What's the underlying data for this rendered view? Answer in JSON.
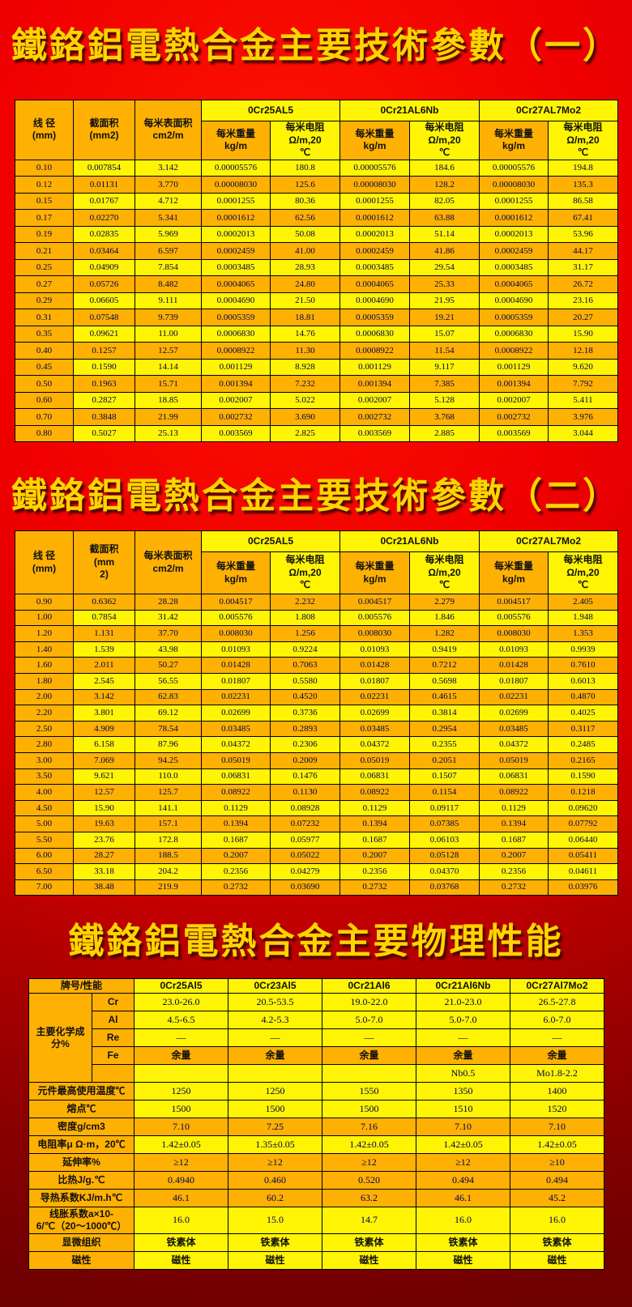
{
  "titles": {
    "section1": "鐵鉻鋁電熱合金主要技術參數（一）",
    "section2": "鐵鉻鋁電熱合金主要技術參數（二）",
    "section3": "鐵鉻鋁電熱合金主要物理性能"
  },
  "colors": {
    "background_red": "#ee0000",
    "background_dark_red": "#8f0000",
    "title_gold": "#ffd400",
    "cell_orange": "#ffb103",
    "cell_yellow": "#fff404",
    "value_ink": "#00004e"
  },
  "table1": {
    "header": {
      "diameter": "线 径\n(mm)",
      "area": "截面积\n(mm2)",
      "surface": "每米表面积\ncm2/m",
      "alloys": [
        "0Cr25AL5",
        "0Cr21AL6Nb",
        "0Cr27AL7Mo2"
      ],
      "weight": "每米重量\nkg/m",
      "resistance": "每米电阻\nΩ/m,20\n℃"
    },
    "rows": [
      [
        "0.10",
        "0.007854",
        "3.142",
        "0.00005576",
        "180.8",
        "0.00005576",
        "184.6",
        "0.00005576",
        "194.8"
      ],
      [
        "0.12",
        "0.01131",
        "3.770",
        "0.00008030",
        "125.6",
        "0.00008030",
        "128.2",
        "0.00008030",
        "135.3"
      ],
      [
        "0.15",
        "0.01767",
        "4.712",
        "0.0001255",
        "80.36",
        "0.0001255",
        "82.05",
        "0.0001255",
        "86.58"
      ],
      [
        "0.17",
        "0.02270",
        "5.341",
        "0.0001612",
        "62.56",
        "0.0001612",
        "63.88",
        "0.0001612",
        "67.41"
      ],
      [
        "0.19",
        "0.02835",
        "5.969",
        "0.0002013",
        "50.08",
        "0.0002013",
        "51.14",
        "0.0002013",
        "53.96"
      ],
      [
        "0.21",
        "0.03464",
        "6.597",
        "0.0002459",
        "41.00",
        "0.0002459",
        "41.86",
        "0.0002459",
        "44.17"
      ],
      [
        "0.25",
        "0.04909",
        "7.854",
        "0.0003485",
        "28.93",
        "0.0003485",
        "29.54",
        "0.0003485",
        "31.17"
      ],
      [
        "0.27",
        "0.05726",
        "8.482",
        "0.0004065",
        "24.80",
        "0.0004065",
        "25.33",
        "0.0004065",
        "26.72"
      ],
      [
        "0.29",
        "0.06605",
        "9.111",
        "0.0004690",
        "21.50",
        "0.0004690",
        "21.95",
        "0.0004690",
        "23.16"
      ],
      [
        "0.31",
        "0.07548",
        "9.739",
        "0.0005359",
        "18.81",
        "0.0005359",
        "19.21",
        "0.0005359",
        "20.27"
      ],
      [
        "0.35",
        "0.09621",
        "11.00",
        "0.0006830",
        "14.76",
        "0.0006830",
        "15.07",
        "0.0006830",
        "15.90"
      ],
      [
        "0.40",
        "0.1257",
        "12.57",
        "0.0008922",
        "11.30",
        "0.0008922",
        "11.54",
        "0.0008922",
        "12.18"
      ],
      [
        "0.45",
        "0.1590",
        "14.14",
        "0.001129",
        "8.928",
        "0.001129",
        "9.117",
        "0.001129",
        "9.620"
      ],
      [
        "0.50",
        "0.1963",
        "15.71",
        "0.001394",
        "7.232",
        "0.001394",
        "7.385",
        "0.001394",
        "7.792"
      ],
      [
        "0.60",
        "0.2827",
        "18.85",
        "0.002007",
        "5.022",
        "0.002007",
        "5.128",
        "0.002007",
        "5.411"
      ],
      [
        "0.70",
        "0.3848",
        "21.99",
        "0.002732",
        "3.690",
        "0.002732",
        "3.768",
        "0.002732",
        "3.976"
      ],
      [
        "0.80",
        "0.5027",
        "25.13",
        "0.003569",
        "2.825",
        "0.003569",
        "2.885",
        "0.003569",
        "3.044"
      ]
    ]
  },
  "table2": {
    "header": {
      "diameter": "线 径\n(mm)",
      "area": "截面积\n(mm\n2)",
      "surface": "每米表面积\ncm2/m",
      "alloys": [
        "0Cr25AL5",
        "0Cr21AL6Nb",
        "0Cr27AL7Mo2"
      ],
      "weight": "每米重量\nkg/m",
      "resistance": "每米电阻\nΩ/m,20\n℃"
    },
    "rows": [
      [
        "0.90",
        "0.6362",
        "28.28",
        "0.004517",
        "2.232",
        "0.004517",
        "2.279",
        "0.004517",
        "2.405"
      ],
      [
        "1.00",
        "0.7854",
        "31.42",
        "0.005576",
        "1.808",
        "0.005576",
        "1.846",
        "0.005576",
        "1.948"
      ],
      [
        "1.20",
        "1.131",
        "37.70",
        "0.008030",
        "1.256",
        "0.008030",
        "1.282",
        "0.008030",
        "1.353"
      ],
      [
        "1.40",
        "1.539",
        "43.98",
        "0.01093",
        "0.9224",
        "0.01093",
        "0.9419",
        "0.01093",
        "0.9939"
      ],
      [
        "1.60",
        "2.011",
        "50.27",
        "0.01428",
        "0.7063",
        "0.01428",
        "0.7212",
        "0.01428",
        "0.7610"
      ],
      [
        "1.80",
        "2.545",
        "56.55",
        "0.01807",
        "0.5580",
        "0.01807",
        "0.5698",
        "0.01807",
        "0.6013"
      ],
      [
        "2.00",
        "3.142",
        "62.83",
        "0.02231",
        "0.4520",
        "0.02231",
        "0.4615",
        "0.02231",
        "0.4870"
      ],
      [
        "2.20",
        "3.801",
        "69.12",
        "0.02699",
        "0.3736",
        "0.02699",
        "0.3814",
        "0.02699",
        "0.4025"
      ],
      [
        "2.50",
        "4.909",
        "78.54",
        "0.03485",
        "0.2893",
        "0.03485",
        "0.2954",
        "0.03485",
        "0.3117"
      ],
      [
        "2.80",
        "6.158",
        "87.96",
        "0.04372",
        "0.2306",
        "0.04372",
        "0.2355",
        "0.04372",
        "0.2485"
      ],
      [
        "3.00",
        "7.069",
        "94.25",
        "0.05019",
        "0.2009",
        "0.05019",
        "0.2051",
        "0.05019",
        "0.2165"
      ],
      [
        "3.50",
        "9.621",
        "110.0",
        "0.06831",
        "0.1476",
        "0.06831",
        "0.1507",
        "0.06831",
        "0.1590"
      ],
      [
        "4.00",
        "12.57",
        "125.7",
        "0.08922",
        "0.1130",
        "0.08922",
        "0.1154",
        "0.08922",
        "0.1218"
      ],
      [
        "4.50",
        "15.90",
        "141.1",
        "0.1129",
        "0.08928",
        "0.1129",
        "0.09117",
        "0.1129",
        "0.09620"
      ],
      [
        "5.00",
        "19.63",
        "157.1",
        "0.1394",
        "0.07232",
        "0.1394",
        "0.07385",
        "0.1394",
        "0.07792"
      ],
      [
        "5.50",
        "23.76",
        "172.8",
        "0.1687",
        "0.05977",
        "0.1687",
        "0.06103",
        "0.1687",
        "0.06440"
      ],
      [
        "6.00",
        "28.27",
        "188.5",
        "0.2007",
        "0.05022",
        "0.2007",
        "0.05128",
        "0.2007",
        "0.05411"
      ],
      [
        "6.50",
        "33.18",
        "204.2",
        "0.2356",
        "0.04279",
        "0.2356",
        "0.04370",
        "0.2356",
        "0.04611"
      ],
      [
        "7.00",
        "38.48",
        "219.9",
        "0.2732",
        "0.03690",
        "0.2732",
        "0.03768",
        "0.2732",
        "0.03976"
      ]
    ]
  },
  "physical": {
    "header": [
      "牌号/性能",
      "0Cr25Al5",
      "0Cr23Al5",
      "0Cr21Al6",
      "0Cr21Al6Nb",
      "0Cr27Al7Mo2"
    ],
    "chem_label": "主要化学成分%",
    "chem_rows": [
      {
        "label": "Cr",
        "values": [
          "23.0-26.0",
          "20.5-53.5",
          "19.0-22.0",
          "21.0-23.0",
          "26.5-27.8"
        ]
      },
      {
        "label": "Al",
        "values": [
          "4.5-6.5",
          "4.2-5.3",
          "5.0-7.0",
          "5.0-7.0",
          "6.0-7.0"
        ]
      },
      {
        "label": "Re",
        "values": [
          "—",
          "—",
          "—",
          "—",
          "—"
        ]
      },
      {
        "label": "Fe",
        "values": [
          "余量",
          "余量",
          "余量",
          "余量",
          "余量"
        ]
      },
      {
        "label": "",
        "values": [
          "",
          "",
          "",
          "Nb0.5",
          "Mo1.8-2.2"
        ]
      }
    ],
    "prop_rows": [
      {
        "label": "元件最高使用温度℃",
        "values": [
          "1250",
          "1250",
          "1550",
          "1350",
          "1400"
        ]
      },
      {
        "label": "熔点℃",
        "values": [
          "1500",
          "1500",
          "1500",
          "1510",
          "1520"
        ]
      },
      {
        "label": "密度g/cm3",
        "values": [
          "7.10",
          "7.25",
          "7.16",
          "7.10",
          "7.10"
        ]
      },
      {
        "label": "电阻率μ Ω·m，20℃",
        "values": [
          "1.42±0.05",
          "1.35±0.05",
          "1.42±0.05",
          "1.42±0.05",
          "1.42±0.05"
        ]
      },
      {
        "label": "延伸率%",
        "values": [
          "≥12",
          "≥12",
          "≥12",
          "≥12",
          "≥10"
        ]
      },
      {
        "label": "比热J/g.℃",
        "values": [
          "0.4940",
          "0.460",
          "0.520",
          "0.494",
          "0.494"
        ]
      },
      {
        "label": "导热系数KJ/m.h℃",
        "values": [
          "46.1",
          "60.2",
          "63.2",
          "46.1",
          "45.2"
        ]
      },
      {
        "label": "线胀系数a×10-6/℃（20～1000℃）",
        "values": [
          "16.0",
          "15.0",
          "14.7",
          "16.0",
          "16.0"
        ]
      },
      {
        "label": "显微组织",
        "values": [
          "铁素体",
          "铁素体",
          "铁素体",
          "铁素体",
          "铁素体"
        ]
      },
      {
        "label": "磁性",
        "values": [
          "磁性",
          "磁性",
          "磁性",
          "磁性",
          "磁性"
        ]
      }
    ]
  }
}
